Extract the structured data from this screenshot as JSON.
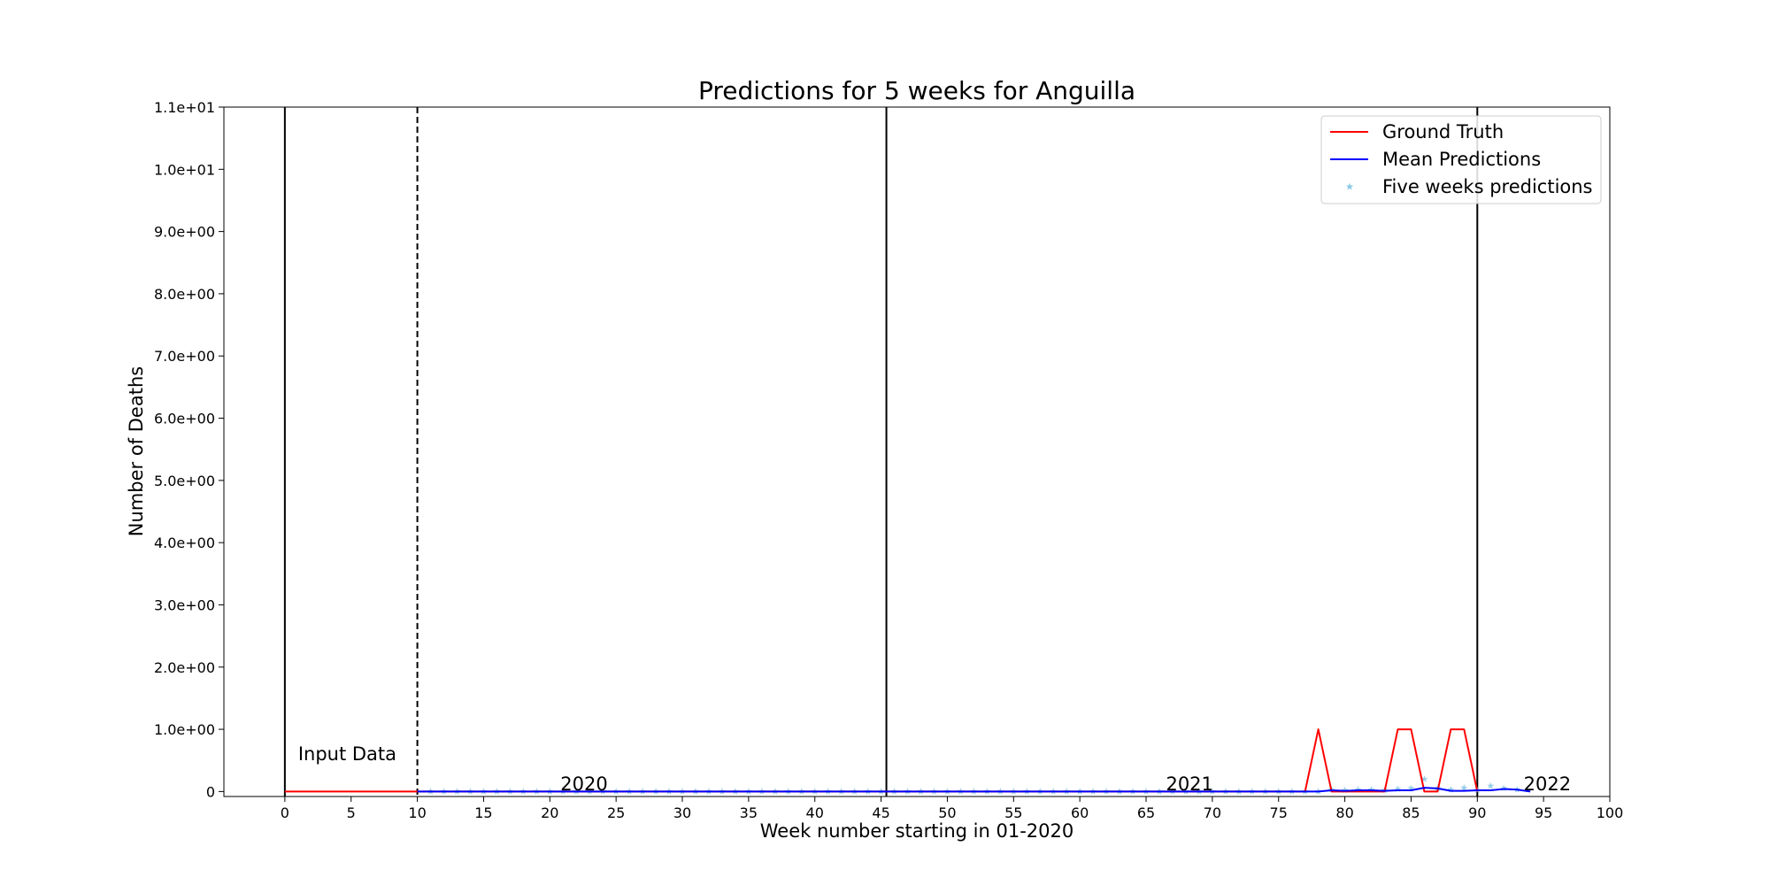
{
  "chart_data": {
    "type": "line",
    "title": "Predictions for 5 weeks for Anguilla",
    "xlabel": "Week number starting in 01-2020",
    "ylabel": "Number of Deaths",
    "xlim": [
      -4.6,
      100
    ],
    "ylim": [
      -0.08,
      11
    ],
    "x_ticks": [
      0,
      5,
      10,
      15,
      20,
      25,
      30,
      35,
      40,
      45,
      50,
      55,
      60,
      65,
      70,
      75,
      80,
      85,
      90,
      95,
      100
    ],
    "y_ticks": [
      {
        "value": 0,
        "label": "0"
      },
      {
        "value": 1,
        "label": "1.0e+00"
      },
      {
        "value": 2,
        "label": "2.0e+00"
      },
      {
        "value": 3,
        "label": "3.0e+00"
      },
      {
        "value": 4,
        "label": "4.0e+00"
      },
      {
        "value": 5,
        "label": "5.0e+00"
      },
      {
        "value": 6,
        "label": "6.0e+00"
      },
      {
        "value": 7,
        "label": "7.0e+00"
      },
      {
        "value": 8,
        "label": "8.0e+00"
      },
      {
        "value": 9,
        "label": "9.0e+00"
      },
      {
        "value": 10,
        "label": "1.0e+01"
      },
      {
        "value": 11,
        "label": "1.1e+01"
      }
    ],
    "grid": false,
    "legend_position": "top-right",
    "legend": [
      {
        "label": "Ground Truth",
        "kind": "line",
        "color": "#ff0000"
      },
      {
        "label": "Mean Predictions",
        "kind": "line",
        "color": "#0000ff"
      },
      {
        "label": "Five weeks predictions",
        "kind": "marker",
        "color": "#8ecae6"
      }
    ],
    "vertical_lines": [
      {
        "x": 0,
        "style": "solid"
      },
      {
        "x": 10,
        "style": "dashed"
      },
      {
        "x": 45.4,
        "style": "solid"
      },
      {
        "x": 90,
        "style": "solid"
      }
    ],
    "annotations": [
      {
        "text": "Input Data",
        "x": 1,
        "y": 0.5
      },
      {
        "text": "2020",
        "x": 20.8,
        "y": 0.02
      },
      {
        "text": "2021",
        "x": 66.5,
        "y": 0.02
      },
      {
        "text": "2022",
        "x": 93.5,
        "y": 0.02
      }
    ],
    "series": [
      {
        "name": "Ground Truth",
        "color": "#ff0000",
        "x": [
          0,
          1,
          2,
          3,
          4,
          5,
          6,
          7,
          8,
          9,
          10,
          11,
          12,
          13,
          14,
          15,
          16,
          17,
          18,
          19,
          20,
          21,
          22,
          23,
          24,
          25,
          26,
          27,
          28,
          29,
          30,
          31,
          32,
          33,
          34,
          35,
          36,
          37,
          38,
          39,
          40,
          41,
          42,
          43,
          44,
          45,
          46,
          47,
          48,
          49,
          50,
          51,
          52,
          53,
          54,
          55,
          56,
          57,
          58,
          59,
          60,
          61,
          62,
          63,
          64,
          65,
          66,
          67,
          68,
          69,
          70,
          71,
          72,
          73,
          74,
          75,
          76,
          77,
          78,
          79,
          80,
          81,
          82,
          83,
          84,
          85,
          86,
          87,
          88,
          89,
          90
        ],
        "y": [
          0,
          0,
          0,
          0,
          0,
          0,
          0,
          0,
          0,
          0,
          0,
          0,
          0,
          0,
          0,
          0,
          0,
          0,
          0,
          0,
          0,
          0,
          0,
          0,
          0,
          0,
          0,
          0,
          0,
          0,
          0,
          0,
          0,
          0,
          0,
          0,
          0,
          0,
          0,
          0,
          0,
          0,
          0,
          0,
          0,
          0,
          0,
          0,
          0,
          0,
          0,
          0,
          0,
          0,
          0,
          0,
          0,
          0,
          0,
          0,
          0,
          0,
          0,
          0,
          0,
          0,
          0,
          0,
          0,
          0,
          0,
          0,
          0,
          0,
          0,
          0,
          0,
          0,
          1,
          0,
          0,
          0,
          0,
          0,
          1,
          1,
          0,
          0,
          1,
          1,
          0
        ]
      },
      {
        "name": "Mean Predictions",
        "color": "#0000ff",
        "x": [
          10,
          11,
          12,
          13,
          14,
          15,
          16,
          17,
          18,
          19,
          20,
          21,
          22,
          23,
          24,
          25,
          26,
          27,
          28,
          29,
          30,
          31,
          32,
          33,
          34,
          35,
          36,
          37,
          38,
          39,
          40,
          41,
          42,
          43,
          44,
          45,
          46,
          47,
          48,
          49,
          50,
          51,
          52,
          53,
          54,
          55,
          56,
          57,
          58,
          59,
          60,
          61,
          62,
          63,
          64,
          65,
          66,
          67,
          68,
          69,
          70,
          71,
          72,
          73,
          74,
          75,
          76,
          77,
          78,
          79,
          80,
          81,
          82,
          83,
          84,
          85,
          86,
          87,
          88,
          89,
          90,
          91,
          92,
          93,
          94
        ],
        "y": [
          0,
          0,
          0,
          0,
          0,
          0,
          0,
          0,
          0,
          0,
          0,
          0,
          0,
          0,
          0,
          0,
          0,
          0,
          0,
          0,
          0,
          0,
          0,
          0,
          0,
          0,
          0,
          0,
          0,
          0,
          0,
          0,
          0,
          0,
          0,
          0,
          0,
          0,
          0,
          0,
          0,
          0,
          0,
          0,
          0,
          0,
          0,
          0,
          0,
          0,
          0,
          0,
          0,
          0,
          0,
          0,
          0,
          0,
          0,
          0,
          0,
          0,
          0,
          0,
          0,
          0,
          0,
          0,
          0,
          0.02,
          0.01,
          0.02,
          0.02,
          0.01,
          0.02,
          0.02,
          0.06,
          0.05,
          0.01,
          0.01,
          0.02,
          0.02,
          0.04,
          0.03,
          0
        ]
      },
      {
        "name": "Five weeks predictions",
        "color": "#8ecae6",
        "x": [
          11,
          12,
          13,
          14,
          15,
          16,
          17,
          18,
          19,
          20,
          21,
          22,
          23,
          24,
          25,
          26,
          27,
          28,
          29,
          30,
          31,
          32,
          33,
          34,
          35,
          36,
          37,
          38,
          39,
          40,
          41,
          42,
          43,
          44,
          45,
          46,
          47,
          48,
          49,
          50,
          51,
          52,
          53,
          54,
          55,
          56,
          57,
          58,
          59,
          60,
          61,
          62,
          63,
          64,
          65,
          66,
          67,
          68,
          69,
          70,
          71,
          72,
          73,
          74,
          75,
          76,
          77,
          78,
          79,
          80,
          81,
          82,
          83,
          84,
          85,
          86,
          87,
          88,
          89,
          90,
          91,
          92,
          93
        ],
        "y": [
          0,
          0,
          0,
          0,
          0,
          0,
          0,
          0,
          0,
          0,
          0,
          0,
          0,
          0,
          0,
          0,
          0,
          0,
          0,
          0,
          0,
          0,
          0,
          0,
          0,
          0,
          0,
          0,
          0,
          0,
          0,
          0,
          0,
          0,
          0,
          0,
          0,
          0,
          0,
          0,
          0,
          0,
          0,
          0,
          0,
          0,
          0,
          0,
          0,
          0,
          0,
          0,
          0,
          0,
          0,
          0,
          0,
          0,
          0,
          0,
          0,
          0,
          0,
          0,
          0,
          0,
          0,
          0,
          0.03,
          0.02,
          0.03,
          0.03,
          0.02,
          0.04,
          0.05,
          0.2,
          0.05,
          0.03,
          0.06,
          0.02,
          0.09,
          0.05,
          0.03
        ]
      }
    ]
  }
}
